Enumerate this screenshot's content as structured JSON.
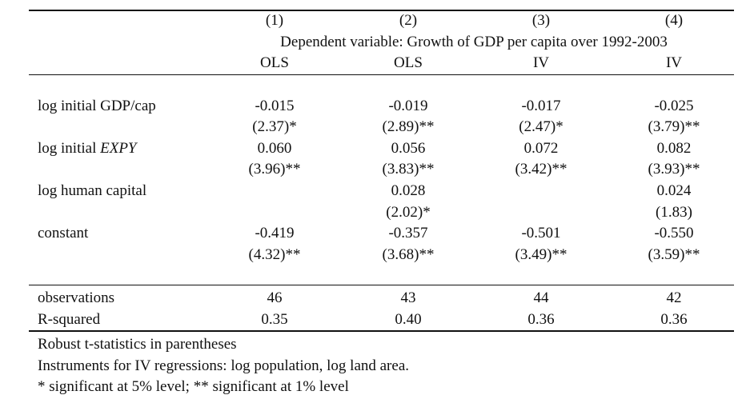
{
  "header": {
    "columns": [
      "(1)",
      "(2)",
      "(3)",
      "(4)"
    ],
    "dependent_variable": "Dependent variable: Growth of GDP per capita over 1992-2003",
    "methods": [
      "OLS",
      "OLS",
      "IV",
      "IV"
    ]
  },
  "rows": [
    {
      "label_prefix": "log initial GDP/cap",
      "label_italic": "",
      "coef": [
        "-0.015",
        "-0.019",
        "-0.017",
        "-0.025"
      ],
      "tstat": [
        "(2.37)*",
        "(2.89)**",
        "(2.47)*",
        "(3.79)**"
      ]
    },
    {
      "label_prefix": "log initial ",
      "label_italic": "EXPY",
      "coef": [
        "0.060",
        "0.056",
        "0.072",
        "0.082"
      ],
      "tstat": [
        "(3.96)**",
        "(3.83)**",
        "(3.42)**",
        "(3.93)**"
      ]
    },
    {
      "label_prefix": "log human capital",
      "label_italic": "",
      "coef": [
        "",
        "0.028",
        "",
        "0.024"
      ],
      "tstat": [
        "",
        "(2.02)*",
        "",
        "(1.83)"
      ]
    },
    {
      "label_prefix": "constant",
      "label_italic": "",
      "coef": [
        "-0.419",
        "-0.357",
        "-0.501",
        "-0.550"
      ],
      "tstat": [
        "(4.32)**",
        "(3.68)**",
        "(3.49)**",
        "(3.59)**"
      ]
    }
  ],
  "stats": [
    {
      "label": "observations",
      "values": [
        "46",
        "43",
        "44",
        "42"
      ]
    },
    {
      "label": "R-squared",
      "values": [
        "0.35",
        "0.40",
        "0.36",
        "0.36"
      ]
    }
  ],
  "notes": [
    "Robust t-statistics in parentheses",
    "Instruments for IV regressions: log population, log land area.",
    "* significant at 5% level; ** significant at 1% level"
  ]
}
